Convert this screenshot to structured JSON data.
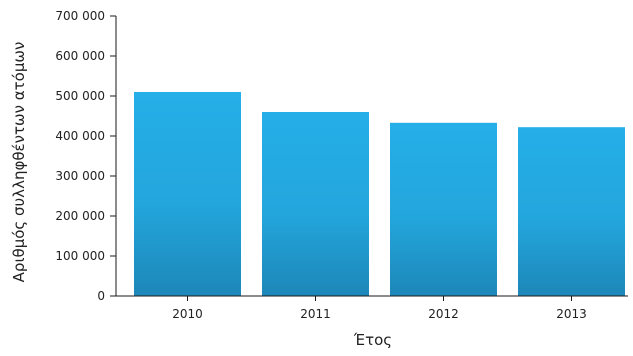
{
  "chart_data": {
    "type": "bar",
    "title": "",
    "xlabel": "Έτος",
    "ylabel": "Αριθμός συλληφθέντων ατόμων",
    "categories": [
      "2010",
      "2011",
      "2012",
      "2013"
    ],
    "values": [
      510000,
      460000,
      433000,
      422000
    ],
    "ylim": [
      0,
      700000
    ],
    "yticks": [
      0,
      100000,
      200000,
      300000,
      400000,
      500000,
      600000,
      700000
    ],
    "ytick_labels": [
      "0",
      "100 000",
      "200 000",
      "300 000",
      "400 000",
      "500 000",
      "600 000",
      "700 000"
    ],
    "grid": false,
    "legend": "none",
    "colors": {
      "bar_top": "#25aee8",
      "bar_mid": "#23a6dc",
      "bar_bottom": "#1d87b8",
      "axis": "#1a1a1a"
    }
  }
}
